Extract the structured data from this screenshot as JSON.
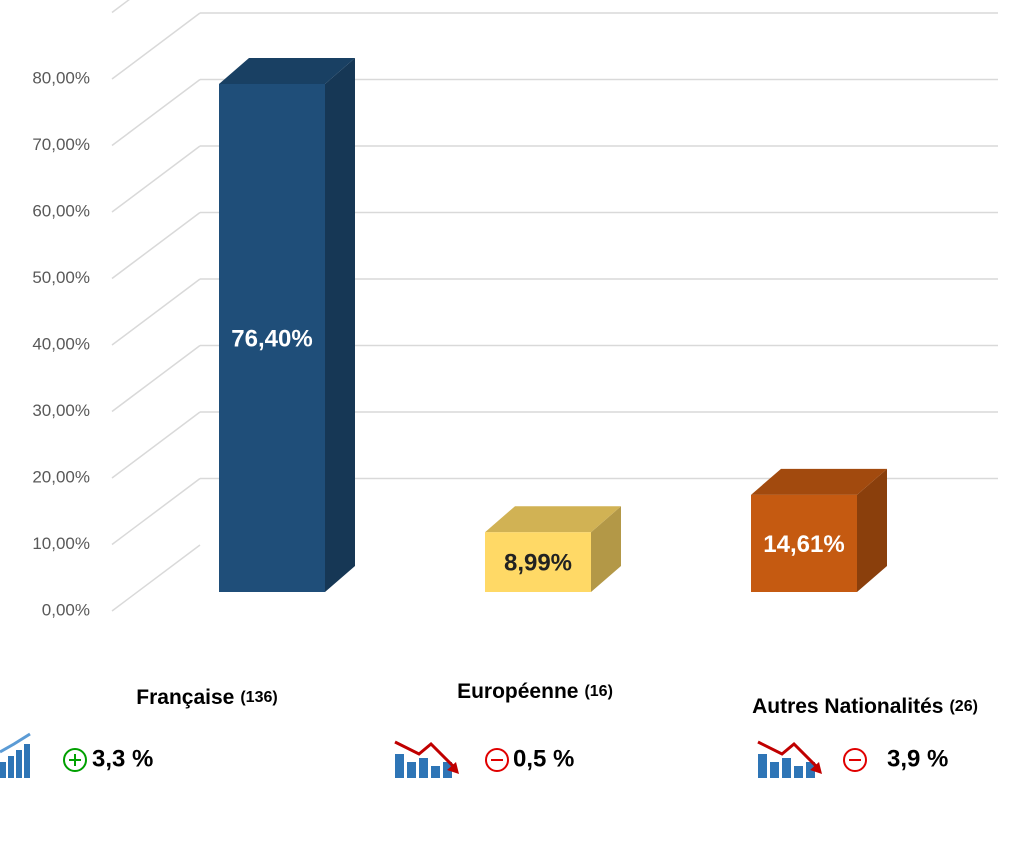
{
  "chart_data": {
    "type": "bar3d",
    "categories": [
      "Française",
      "Européenne",
      "Autres Nationalités"
    ],
    "category_counts": [
      "(136)",
      "(16)",
      "(26)"
    ],
    "values": [
      76.4,
      8.99,
      14.61
    ],
    "value_labels": [
      "76,40%",
      "8,99%",
      "14,61%"
    ],
    "colors": [
      "#1f4e79",
      "#ffd966",
      "#c55a11"
    ],
    "ylim": [
      0,
      90
    ],
    "yticks": [
      {
        "value": 0,
        "label": "0,00%"
      },
      {
        "value": 10,
        "label": "10,00%"
      },
      {
        "value": 20,
        "label": "20,00%"
      },
      {
        "value": 30,
        "label": "30,00%"
      },
      {
        "value": 40,
        "label": "40,00%"
      },
      {
        "value": 50,
        "label": "50,00%"
      },
      {
        "value": 60,
        "label": "60,00%"
      },
      {
        "value": 70,
        "label": "70,00%"
      },
      {
        "value": 80,
        "label": "80,00%"
      }
    ],
    "grid": true,
    "trend": [
      "up",
      "down",
      "down"
    ],
    "change_labels": [
      "3,3 %",
      "0,5 %",
      "3,9 %"
    ]
  }
}
